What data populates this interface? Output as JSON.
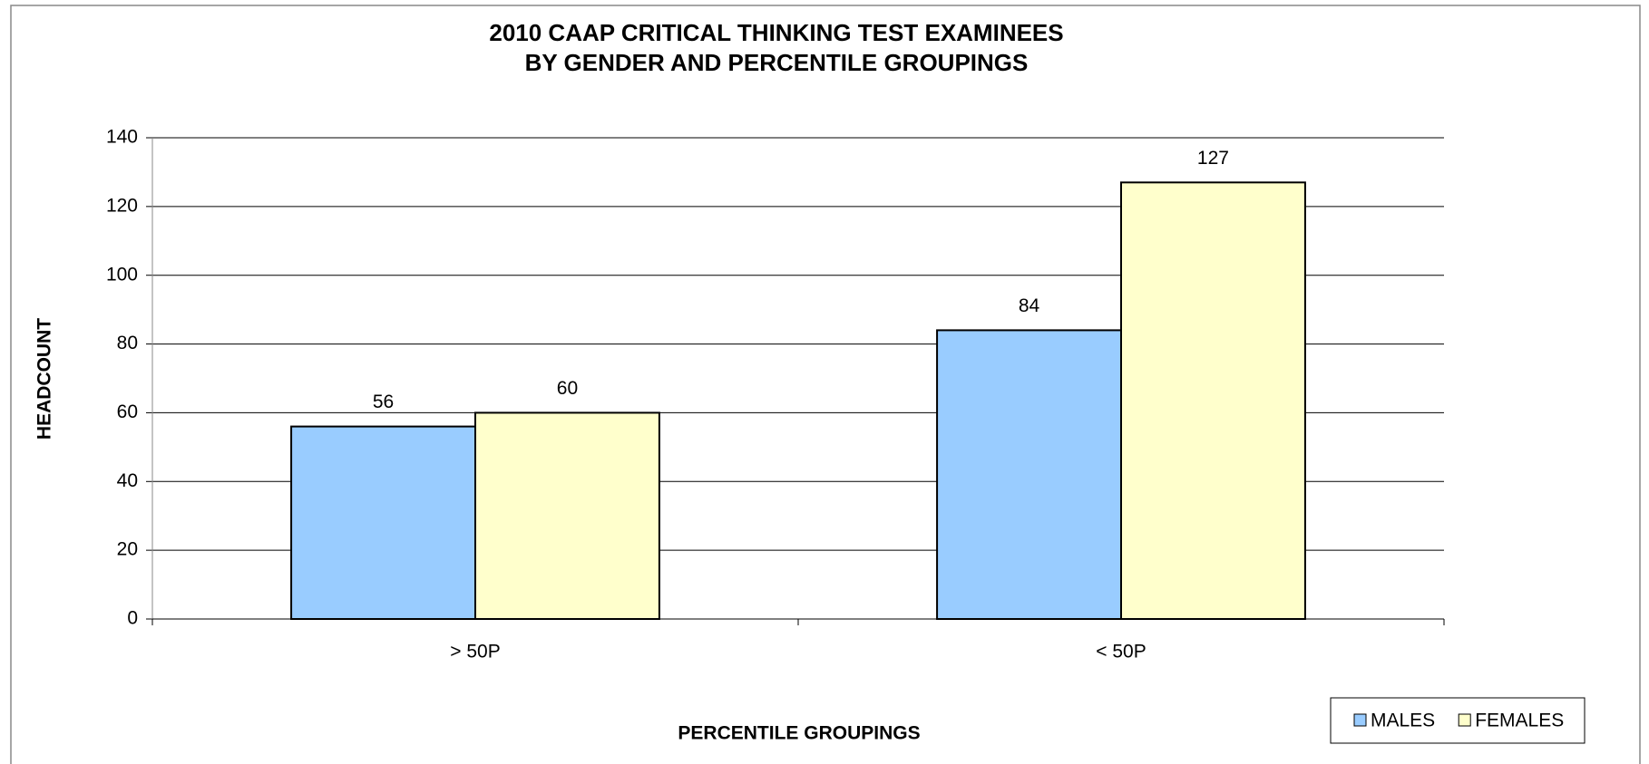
{
  "chart_data": {
    "type": "bar",
    "title": "2010 CAAP CRITICAL THINKING TEST EXAMINEES\nBY GENDER AND PERCENTILE GROUPINGS",
    "xlabel": "PERCENTILE GROUPINGS",
    "ylabel": "HEADCOUNT",
    "categories": [
      "> 50P",
      "< 50P"
    ],
    "series": [
      {
        "name": "MALES",
        "color": "#99ccff",
        "values": [
          56,
          84
        ]
      },
      {
        "name": "FEMALES",
        "color": "#ffffcc",
        "values": [
          60,
          127
        ]
      }
    ],
    "ylim": [
      0,
      140
    ],
    "yticks": [
      0,
      20,
      40,
      60,
      80,
      100,
      120,
      140
    ],
    "grid": true,
    "legend": "bottom-right"
  }
}
